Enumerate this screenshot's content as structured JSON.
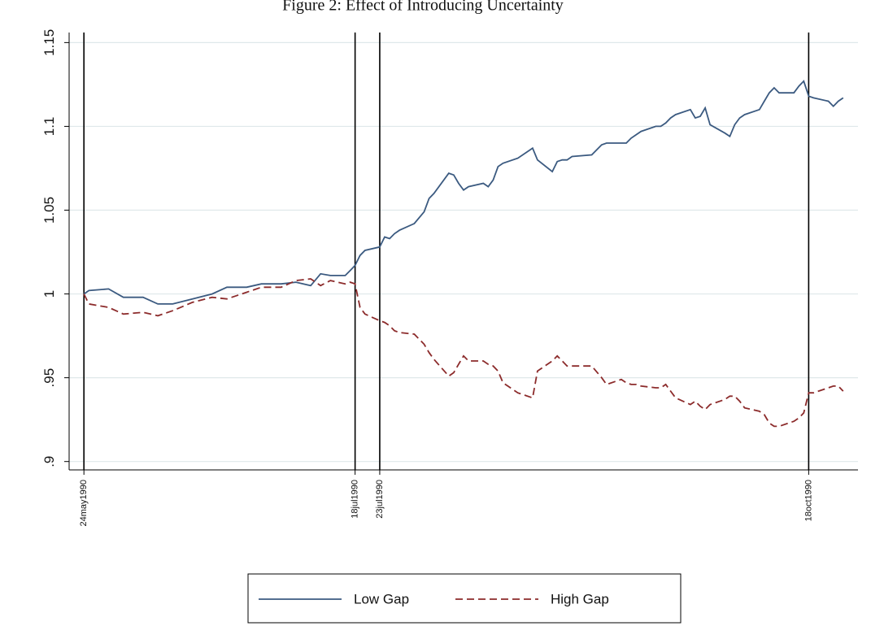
{
  "chart_data": {
    "type": "line",
    "title": "Figure 2: Effect of Introducing Uncertainty",
    "x": [
      "1990-05-24",
      "1990-05-25",
      "1990-05-29",
      "1990-06-01",
      "1990-06-05",
      "1990-06-08",
      "1990-06-11",
      "1990-06-15",
      "1990-06-19",
      "1990-06-22",
      "1990-06-26",
      "1990-06-29",
      "1990-07-03",
      "1990-07-06",
      "1990-07-09",
      "1990-07-11",
      "1990-07-13",
      "1990-07-16",
      "1990-07-17",
      "1990-07-18",
      "1990-07-19",
      "1990-07-20",
      "1990-07-23",
      "1990-07-24",
      "1990-07-25",
      "1990-07-26",
      "1990-07-27",
      "1990-07-30",
      "1990-08-01",
      "1990-08-02",
      "1990-08-03",
      "1990-08-06",
      "1990-08-07",
      "1990-08-08",
      "1990-08-09",
      "1990-08-10",
      "1990-08-13",
      "1990-08-14",
      "1990-08-15",
      "1990-08-16",
      "1990-08-17",
      "1990-08-20",
      "1990-08-23",
      "1990-08-24",
      "1990-08-27",
      "1990-08-28",
      "1990-08-29",
      "1990-08-30",
      "1990-08-31",
      "1990-09-04",
      "1990-09-06",
      "1990-09-07",
      "1990-09-10",
      "1990-09-11",
      "1990-09-12",
      "1990-09-13",
      "1990-09-14",
      "1990-09-17",
      "1990-09-18",
      "1990-09-19",
      "1990-09-20",
      "1990-09-21",
      "1990-09-24",
      "1990-09-25",
      "1990-09-26",
      "1990-09-27",
      "1990-09-28",
      "1990-10-01",
      "1990-10-02",
      "1990-10-03",
      "1990-10-04",
      "1990-10-05",
      "1990-10-08",
      "1990-10-09",
      "1990-10-10",
      "1990-10-11",
      "1990-10-12",
      "1990-10-15",
      "1990-10-16",
      "1990-10-17",
      "1990-10-18",
      "1990-10-19",
      "1990-10-22",
      "1990-10-23",
      "1990-10-24",
      "1990-10-25"
    ],
    "series": [
      {
        "name": "Low Gap",
        "color": "#3b5a80",
        "dash": false,
        "values": [
          1.0,
          1.002,
          1.003,
          0.998,
          0.998,
          0.994,
          0.994,
          0.997,
          1.0,
          1.004,
          1.004,
          1.006,
          1.006,
          1.007,
          1.005,
          1.012,
          1.011,
          1.011,
          1.014,
          1.017,
          1.023,
          1.026,
          1.028,
          1.034,
          1.033,
          1.036,
          1.038,
          1.042,
          1.049,
          1.057,
          1.06,
          1.072,
          1.071,
          1.066,
          1.062,
          1.064,
          1.066,
          1.064,
          1.068,
          1.076,
          1.078,
          1.081,
          1.087,
          1.08,
          1.073,
          1.079,
          1.08,
          1.08,
          1.082,
          1.083,
          1.089,
          1.09,
          1.09,
          1.09,
          1.093,
          1.095,
          1.097,
          1.1,
          1.1,
          1.102,
          1.105,
          1.107,
          1.11,
          1.105,
          1.106,
          1.111,
          1.101,
          1.096,
          1.094,
          1.101,
          1.105,
          1.107,
          1.11,
          1.115,
          1.12,
          1.123,
          1.12,
          1.12,
          1.124,
          1.127,
          1.118,
          1.117,
          1.115,
          1.112,
          1.115,
          1.117
        ]
      },
      {
        "name": "High Gap",
        "color": "#8c2b2b",
        "dash": true,
        "values": [
          1.0,
          0.994,
          0.992,
          0.988,
          0.989,
          0.987,
          0.99,
          0.995,
          0.998,
          0.997,
          1.001,
          1.004,
          1.004,
          1.008,
          1.009,
          1.005,
          1.008,
          1.006,
          1.007,
          1.006,
          0.992,
          0.988,
          0.984,
          0.983,
          0.981,
          0.978,
          0.977,
          0.976,
          0.97,
          0.965,
          0.961,
          0.951,
          0.953,
          0.958,
          0.963,
          0.96,
          0.96,
          0.958,
          0.957,
          0.954,
          0.947,
          0.941,
          0.938,
          0.954,
          0.96,
          0.963,
          0.96,
          0.957,
          0.957,
          0.957,
          0.95,
          0.946,
          0.949,
          0.947,
          0.946,
          0.946,
          0.945,
          0.944,
          0.944,
          0.946,
          0.942,
          0.938,
          0.934,
          0.936,
          0.933,
          0.931,
          0.934,
          0.937,
          0.939,
          0.939,
          0.936,
          0.932,
          0.93,
          0.928,
          0.923,
          0.921,
          0.921,
          0.924,
          0.926,
          0.929,
          0.941,
          0.941,
          0.944,
          0.945,
          0.945,
          0.942
        ]
      }
    ],
    "xlim": [
      "1990-05-21",
      "1990-10-28"
    ],
    "xticks": [
      {
        "value": "1990-05-24",
        "label": "24may1990"
      },
      {
        "value": "1990-07-18",
        "label": "18jul1990"
      },
      {
        "value": "1990-07-23",
        "label": "23jul1990"
      },
      {
        "value": "1990-10-18",
        "label": "18oct1990"
      }
    ],
    "ylim": [
      0.895,
      1.156
    ],
    "yticks": [
      {
        "value": 0.9,
        "label": ".9"
      },
      {
        "value": 0.95,
        "label": ".95"
      },
      1,
      1.05,
      1.1,
      1.15
    ],
    "grid": true,
    "legend": "bottom"
  }
}
